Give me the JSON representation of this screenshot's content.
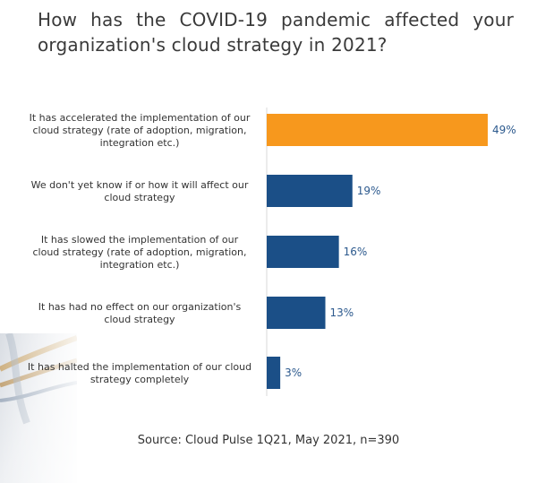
{
  "title": "How has the COVID-19 pandemic affected your organization's cloud strategy in 2021?",
  "source": "Source: Cloud Pulse 1Q21, May 2021, n=390",
  "colors": {
    "highlight": "#F7981D",
    "bar": "#1B4F87",
    "value_text": "#2D5A8E"
  },
  "chart_data": {
    "type": "bar",
    "orientation": "horizontal",
    "categories": [
      [
        "It has accelerated the implementation of our",
        "cloud strategy (rate of adoption, migration,",
        "integration etc.)"
      ],
      [
        "We don't yet know if or how it will affect our",
        "cloud strategy"
      ],
      [
        "It has slowed the implementation of our",
        "cloud strategy (rate of adoption, migration,",
        "integration etc.)"
      ],
      [
        "It has had no effect on our organization's",
        "cloud strategy"
      ],
      [
        "It has halted the implementation of our cloud",
        "strategy completely"
      ]
    ],
    "values": [
      49,
      19,
      16,
      13,
      3
    ],
    "value_labels": [
      "49%",
      "19%",
      "16%",
      "13%",
      "3%"
    ],
    "highlight_index": 0,
    "xlim": [
      0,
      50
    ],
    "grid": false
  }
}
